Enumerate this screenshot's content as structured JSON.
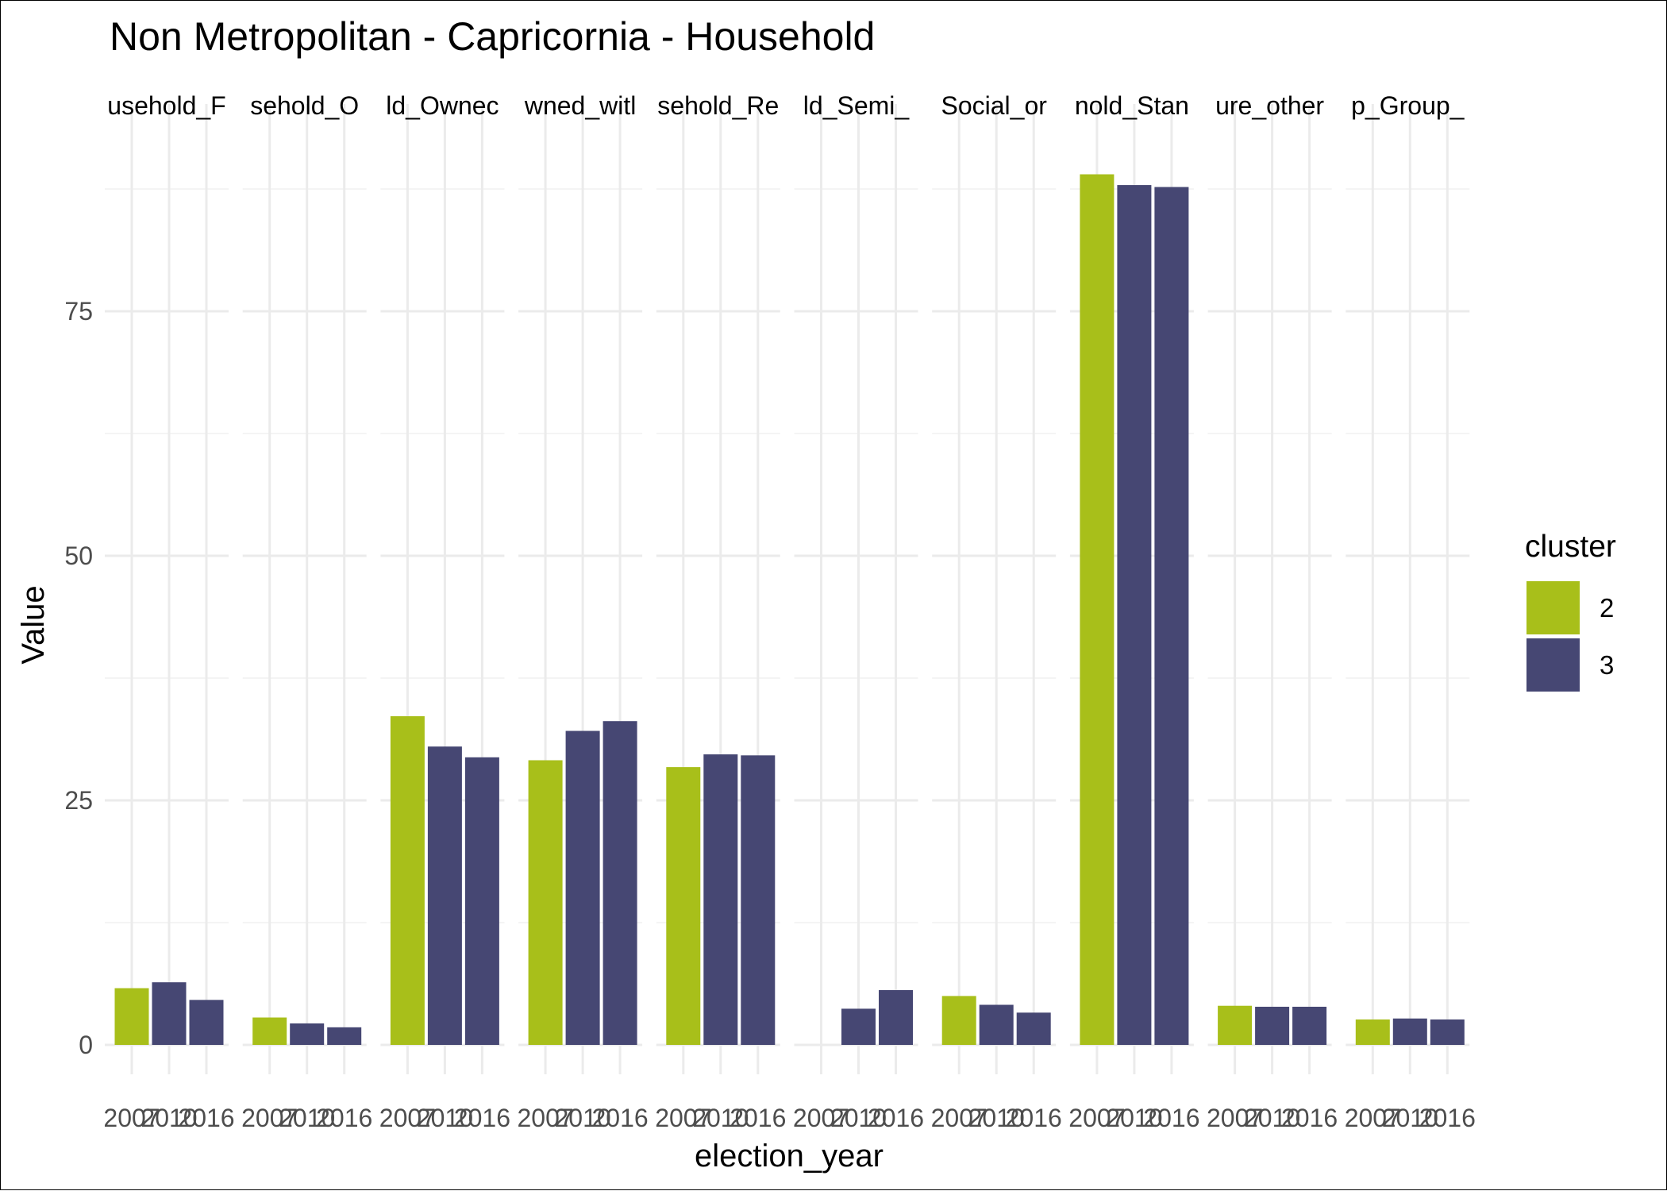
{
  "chart_data": {
    "type": "bar",
    "title": "Non Metropolitan - Capricornia - Household",
    "xlabel": "election_year",
    "ylabel": "Value",
    "ylim": [
      -2.8,
      95
    ],
    "y_ticks": [
      0,
      25,
      50,
      75
    ],
    "grid": true,
    "legend_position": "right",
    "legend_title": "cluster",
    "legend": [
      {
        "name": "2",
        "color": "#A8BF1A"
      },
      {
        "name": "3",
        "color": "#464773"
      }
    ],
    "years": [
      "2007",
      "2010",
      "2016"
    ],
    "panels": [
      {
        "label": "usehold_F",
        "bars": [
          {
            "year": "2007",
            "value": 5.8,
            "cluster": "2"
          },
          {
            "year": "2010",
            "value": 6.4,
            "cluster": "3"
          },
          {
            "year": "2016",
            "value": 4.6,
            "cluster": "3"
          }
        ]
      },
      {
        "label": "sehold_O",
        "bars": [
          {
            "year": "2007",
            "value": 2.8,
            "cluster": "2"
          },
          {
            "year": "2010",
            "value": 2.2,
            "cluster": "3"
          },
          {
            "year": "2016",
            "value": 1.8,
            "cluster": "3"
          }
        ]
      },
      {
        "label": "ld_Ownec",
        "bars": [
          {
            "year": "2007",
            "value": 33.6,
            "cluster": "2"
          },
          {
            "year": "2010",
            "value": 30.5,
            "cluster": "3"
          },
          {
            "year": "2016",
            "value": 29.4,
            "cluster": "3"
          }
        ]
      },
      {
        "label": "wned_witl",
        "bars": [
          {
            "year": "2007",
            "value": 29.1,
            "cluster": "2"
          },
          {
            "year": "2010",
            "value": 32.1,
            "cluster": "3"
          },
          {
            "year": "2016",
            "value": 33.1,
            "cluster": "3"
          }
        ]
      },
      {
        "label": "sehold_Re",
        "bars": [
          {
            "year": "2007",
            "value": 28.4,
            "cluster": "2"
          },
          {
            "year": "2010",
            "value": 29.7,
            "cluster": "3"
          },
          {
            "year": "2016",
            "value": 29.6,
            "cluster": "3"
          }
        ]
      },
      {
        "label": "ld_Semi_",
        "bars": [
          {
            "year": "2010",
            "value": 3.7,
            "cluster": "3"
          },
          {
            "year": "2016",
            "value": 5.6,
            "cluster": "3"
          }
        ]
      },
      {
        "label": "Social_or",
        "bars": [
          {
            "year": "2007",
            "value": 5.0,
            "cluster": "2"
          },
          {
            "year": "2010",
            "value": 4.1,
            "cluster": "3"
          },
          {
            "year": "2016",
            "value": 3.3,
            "cluster": "3"
          }
        ]
      },
      {
        "label": "nold_Stan",
        "bars": [
          {
            "year": "2007",
            "value": 89.0,
            "cluster": "2"
          },
          {
            "year": "2010",
            "value": 87.9,
            "cluster": "3"
          },
          {
            "year": "2016",
            "value": 87.7,
            "cluster": "3"
          }
        ]
      },
      {
        "label": "ure_other",
        "bars": [
          {
            "year": "2007",
            "value": 4.0,
            "cluster": "2"
          },
          {
            "year": "2010",
            "value": 3.9,
            "cluster": "3"
          },
          {
            "year": "2016",
            "value": 3.9,
            "cluster": "3"
          }
        ]
      },
      {
        "label": "p_Group_",
        "bars": [
          {
            "year": "2007",
            "value": 2.6,
            "cluster": "2"
          },
          {
            "year": "2010",
            "value": 2.7,
            "cluster": "3"
          },
          {
            "year": "2016",
            "value": 2.6,
            "cluster": "3"
          }
        ]
      }
    ]
  },
  "colors": {
    "grid_major": "#EBEBEB",
    "grid_minor": "#F4F4F4",
    "text_dark": "#000000",
    "text_axis": "#4D4D4D"
  }
}
